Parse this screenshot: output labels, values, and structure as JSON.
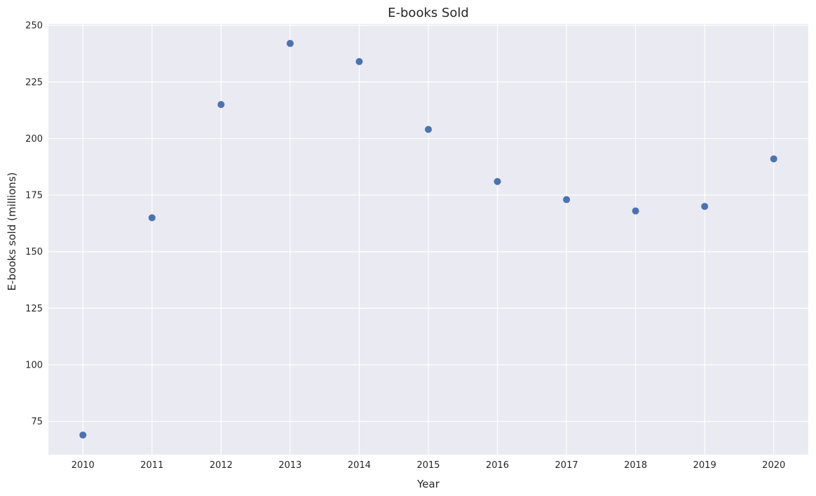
{
  "chart_data": {
    "type": "scatter",
    "title": "E-books Sold",
    "xlabel": "Year",
    "ylabel": "E-books sold (millions)",
    "x": [
      2010,
      2011,
      2012,
      2013,
      2014,
      2015,
      2016,
      2017,
      2018,
      2019,
      2020
    ],
    "y": [
      69,
      165,
      215,
      242,
      234,
      204,
      181,
      173,
      168,
      170,
      191
    ],
    "xlim": [
      2009.5,
      2020.5
    ],
    "ylim": [
      60.35,
      250.65
    ],
    "xticks": [
      "2010",
      "2011",
      "2012",
      "2013",
      "2014",
      "2015",
      "2016",
      "2017",
      "2018",
      "2019",
      "2020"
    ],
    "yticks": [
      "75",
      "100",
      "125",
      "150",
      "175",
      "200",
      "225",
      "250"
    ],
    "grid": true,
    "colors": {
      "background": "#eaeaf2",
      "grid": "#ffffff",
      "marker": "#4c72b0"
    }
  }
}
